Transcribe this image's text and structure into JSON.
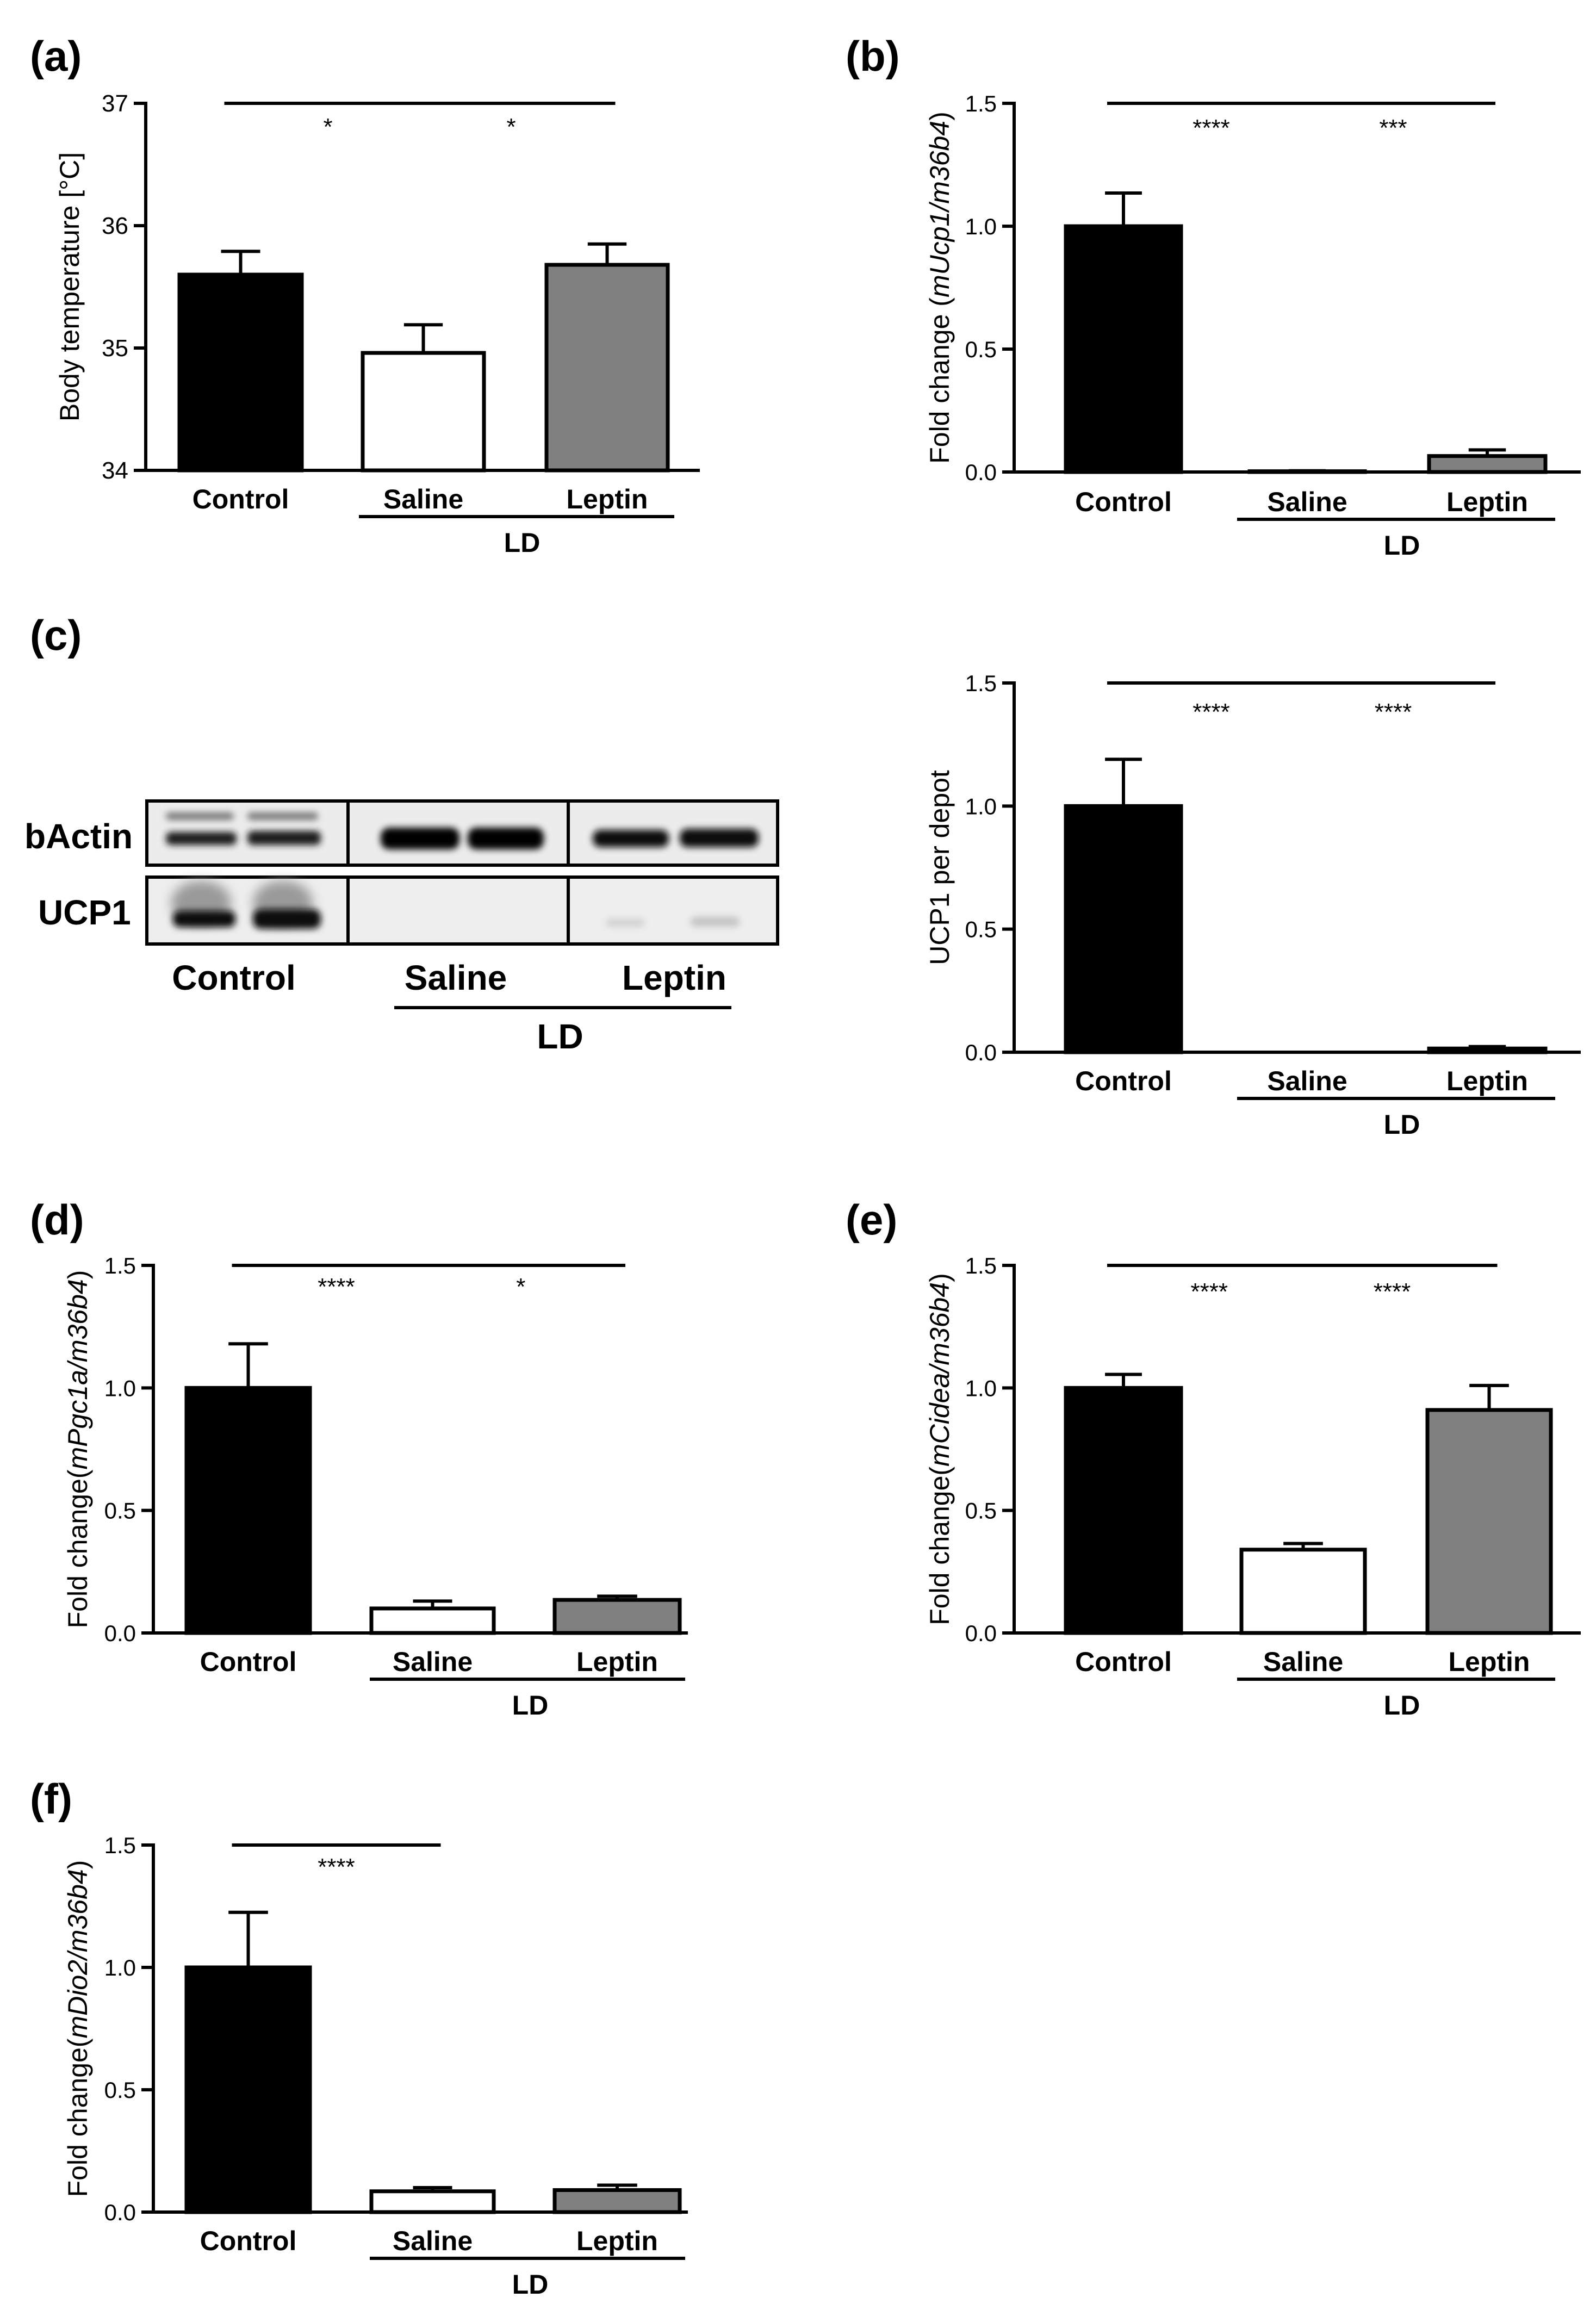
{
  "colors": {
    "control": "#000000",
    "saline": "#ffffff",
    "leptin": "#808080",
    "stroke": "#000000"
  },
  "group_label": "LD",
  "chart_data": [
    {
      "id": "a",
      "panel_label": "(a)",
      "type": "bar",
      "ylabel_parts": [
        {
          "text": "Body temperature [°C]",
          "italic": false
        }
      ],
      "ylim": [
        34,
        37
      ],
      "yticks": [
        {
          "v": 34,
          "l": "34"
        },
        {
          "v": 35,
          "l": "35"
        },
        {
          "v": 36,
          "l": "36"
        },
        {
          "v": 37,
          "l": "37"
        }
      ],
      "categories": [
        "Control",
        "Saline",
        "Leptin"
      ],
      "values": [
        35.6,
        34.96,
        35.68
      ],
      "errors": [
        0.19,
        0.23,
        0.17
      ],
      "group_label": "LD",
      "significance": [
        {
          "pair": [
            0,
            1
          ],
          "label": "*"
        },
        {
          "pair": [
            1,
            2
          ],
          "label": "*"
        }
      ]
    },
    {
      "id": "b",
      "panel_label": "(b)",
      "type": "bar",
      "ylabel_parts": [
        {
          "text": "Fold change (",
          "italic": false
        },
        {
          "text": "mUcp1/m36b4",
          "italic": true
        },
        {
          "text": ")",
          "italic": false
        }
      ],
      "ylim": [
        0,
        1.5
      ],
      "yticks": [
        {
          "v": 0,
          "l": "0.0"
        },
        {
          "v": 0.5,
          "l": "0.5"
        },
        {
          "v": 1,
          "l": "1.0"
        },
        {
          "v": 1.5,
          "l": "1.5"
        }
      ],
      "categories": [
        "Control",
        "Saline",
        "Leptin"
      ],
      "values": [
        1.0,
        0.003,
        0.065
      ],
      "errors": [
        0.135,
        0.002,
        0.025
      ],
      "group_label": "LD",
      "significance": [
        {
          "pair": [
            0,
            1
          ],
          "label": "****"
        },
        {
          "pair": [
            1,
            2
          ],
          "label": "***"
        }
      ]
    },
    {
      "id": "c",
      "panel_label": "(c)",
      "type": "bar",
      "ylabel_parts": [
        {
          "text": "UCP1 per depot",
          "italic": false
        }
      ],
      "ylim": [
        0,
        1.5
      ],
      "yticks": [
        {
          "v": 0,
          "l": "0.0"
        },
        {
          "v": 0.5,
          "l": "0.5"
        },
        {
          "v": 1,
          "l": "1.0"
        },
        {
          "v": 1.5,
          "l": "1.5"
        }
      ],
      "categories": [
        "Control",
        "Saline",
        "Leptin"
      ],
      "values": [
        1.0,
        0.0,
        0.015
      ],
      "errors": [
        0.19,
        0.0,
        0.008
      ],
      "group_label": "LD",
      "significance": [
        {
          "pair": [
            0,
            1
          ],
          "label": "****"
        },
        {
          "pair": [
            1,
            2
          ],
          "label": "****"
        }
      ]
    },
    {
      "id": "d",
      "panel_label": "(d)",
      "type": "bar",
      "ylabel_parts": [
        {
          "text": "Fold change(",
          "italic": false
        },
        {
          "text": "mPgc1a/m36b4",
          "italic": true
        },
        {
          "text": ")",
          "italic": false
        }
      ],
      "ylim": [
        0,
        1.5
      ],
      "yticks": [
        {
          "v": 0,
          "l": "0.0"
        },
        {
          "v": 0.5,
          "l": "0.5"
        },
        {
          "v": 1,
          "l": "1.0"
        },
        {
          "v": 1.5,
          "l": "1.5"
        }
      ],
      "categories": [
        "Control",
        "Saline",
        "Leptin"
      ],
      "values": [
        1.0,
        0.1,
        0.135
      ],
      "errors": [
        0.18,
        0.03,
        0.015
      ],
      "group_label": "LD",
      "significance": [
        {
          "pair": [
            0,
            1
          ],
          "label": "****"
        },
        {
          "pair": [
            1,
            2
          ],
          "label": "*"
        }
      ]
    },
    {
      "id": "e",
      "panel_label": "(e)",
      "type": "bar",
      "ylabel_parts": [
        {
          "text": "Fold change(",
          "italic": false
        },
        {
          "text": "mCidea/m36b4",
          "italic": true
        },
        {
          "text": ")",
          "italic": false
        }
      ],
      "ylim": [
        0,
        1.5
      ],
      "yticks": [
        {
          "v": 0,
          "l": "0.0"
        },
        {
          "v": 0.5,
          "l": "0.5"
        },
        {
          "v": 1,
          "l": "1.0"
        },
        {
          "v": 1.5,
          "l": "1.5"
        }
      ],
      "categories": [
        "Control",
        "Saline",
        "Leptin"
      ],
      "values": [
        1.0,
        0.34,
        0.91
      ],
      "errors": [
        0.055,
        0.025,
        0.1
      ],
      "group_label": "LD",
      "significance": [
        {
          "pair": [
            0,
            1
          ],
          "label": "****"
        },
        {
          "pair": [
            1,
            2
          ],
          "label": "****"
        }
      ]
    },
    {
      "id": "f",
      "panel_label": "(f)",
      "type": "bar",
      "ylabel_parts": [
        {
          "text": "Fold change(",
          "italic": false
        },
        {
          "text": "mDio2/m36b4",
          "italic": true
        },
        {
          "text": ")",
          "italic": false
        }
      ],
      "ylim": [
        0,
        1.5
      ],
      "yticks": [
        {
          "v": 0,
          "l": "0.0"
        },
        {
          "v": 0.5,
          "l": "0.5"
        },
        {
          "v": 1,
          "l": "1.0"
        },
        {
          "v": 1.5,
          "l": "1.5"
        }
      ],
      "categories": [
        "Control",
        "Saline",
        "Leptin"
      ],
      "values": [
        1.0,
        0.085,
        0.09
      ],
      "errors": [
        0.225,
        0.015,
        0.02
      ],
      "group_label": "LD",
      "significance": [
        {
          "pair": [
            0,
            1
          ],
          "label": "****"
        }
      ]
    }
  ],
  "western_blot": {
    "rows": [
      "bActin",
      "UCP1"
    ],
    "lanes": [
      "Control",
      "Saline",
      "Leptin"
    ],
    "group_label": "LD"
  }
}
